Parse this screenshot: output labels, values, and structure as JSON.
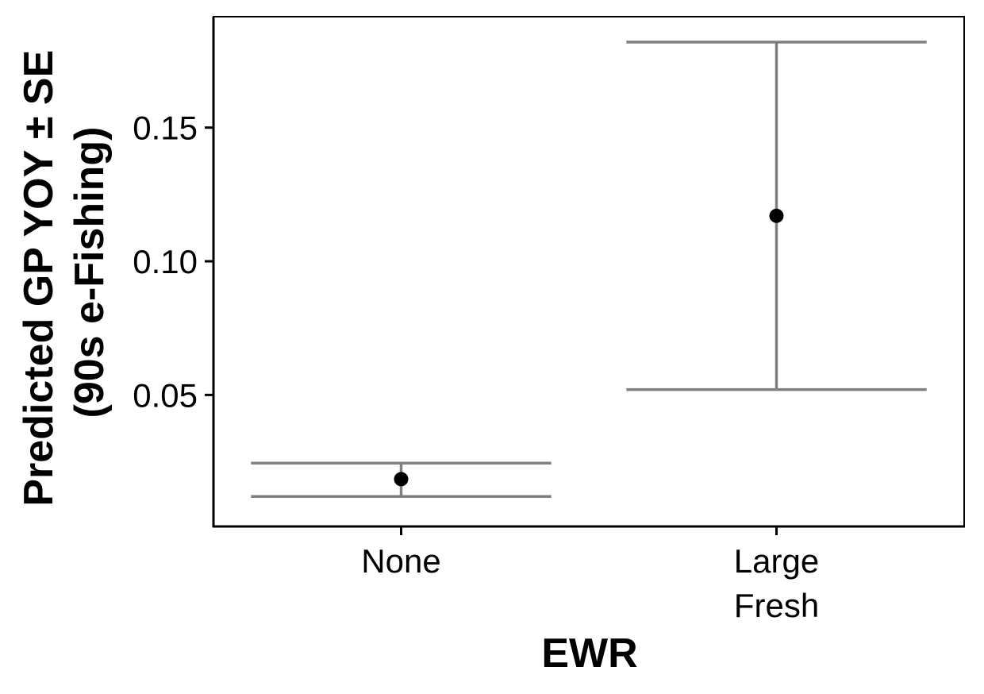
{
  "chart_data": {
    "type": "scatter",
    "title": "",
    "xlabel": "EWR",
    "ylabel_lines": [
      "Predicted GP YOY ± SE",
      "(90s e-Fishing)"
    ],
    "categories": [
      [
        "None"
      ],
      [
        "Large",
        "Fresh"
      ]
    ],
    "points": [
      {
        "category": "None",
        "y": 0.0185,
        "se_lower": 0.012,
        "se_upper": 0.0245
      },
      {
        "category": "Large Fresh",
        "y": 0.117,
        "se_lower": 0.052,
        "se_upper": 0.182
      }
    ],
    "yticks": [
      0.05,
      0.1,
      0.15
    ],
    "ytick_labels": [
      "0.05",
      "0.10",
      "0.15"
    ],
    "ylim": [
      0.0008,
      0.1915
    ],
    "grid": false,
    "legend": "none",
    "colors": {
      "point": "#000000",
      "errorbar": "#808080",
      "axis": "#000000"
    }
  }
}
